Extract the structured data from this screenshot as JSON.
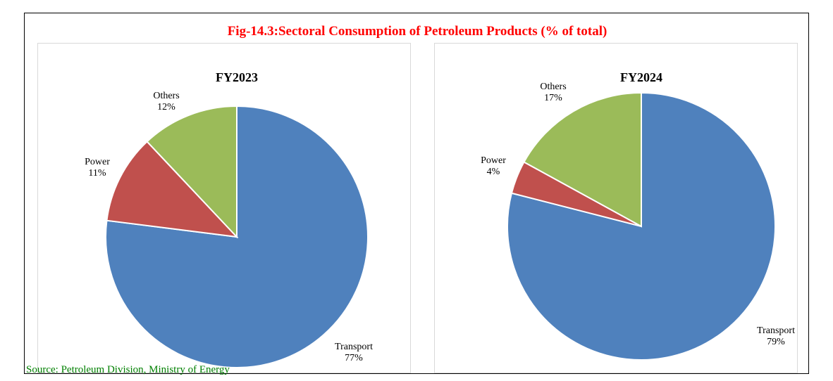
{
  "figure": {
    "title": "Fig-14.3:Sectoral Consumption of Petroleum Products (% of total)",
    "source": "Source: Petroleum Division, Ministry of Energy"
  },
  "chart_data": [
    {
      "type": "pie",
      "title": "FY2023",
      "categories": [
        "Transport",
        "Power",
        "Others"
      ],
      "values": [
        77,
        11,
        12
      ],
      "labels": [
        "77%",
        "11%",
        "12%"
      ],
      "colors": [
        "#4f81bd",
        "#c0504d",
        "#9bbb59"
      ],
      "unit": "%"
    },
    {
      "type": "pie",
      "title": "FY2024",
      "categories": [
        "Transport",
        "Power",
        "Others"
      ],
      "values": [
        79,
        4,
        17
      ],
      "labels": [
        "79%",
        "4%",
        "17%"
      ],
      "colors": [
        "#4f81bd",
        "#c0504d",
        "#9bbb59"
      ],
      "unit": "%"
    }
  ]
}
